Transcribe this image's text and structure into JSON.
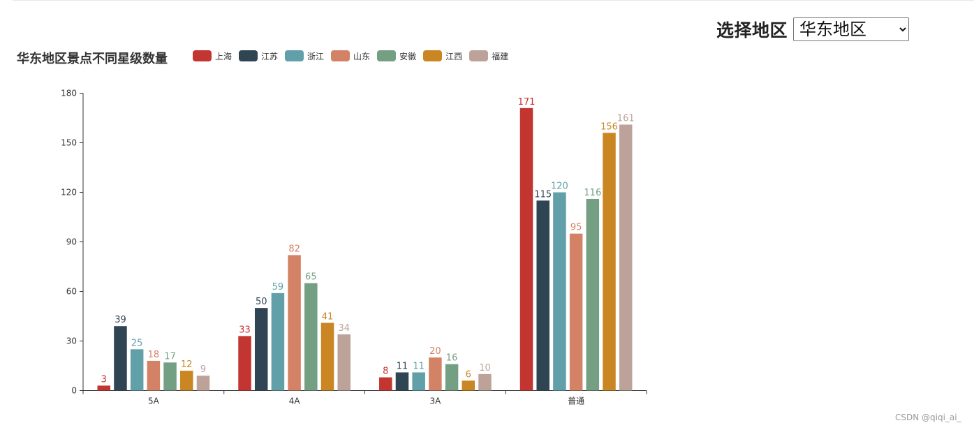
{
  "selector": {
    "label": "选择地区",
    "selected": "华东地区",
    "options": [
      "华东地区"
    ]
  },
  "watermark": "CSDN @qiqi_ai_",
  "chart_data": {
    "type": "bar",
    "title": "华东地区景点不同星级数量",
    "categories": [
      "5A",
      "4A",
      "3A",
      "普通"
    ],
    "yticks": [
      0,
      30,
      60,
      90,
      120,
      150,
      180
    ],
    "ylim": [
      0,
      180
    ],
    "legend_position": "top-left",
    "series": [
      {
        "name": "上海",
        "color": "#c23531",
        "values": [
          3,
          33,
          8,
          171
        ]
      },
      {
        "name": "江苏",
        "color": "#2f4554",
        "values": [
          39,
          50,
          11,
          115
        ]
      },
      {
        "name": "浙江",
        "color": "#61a0a8",
        "values": [
          25,
          59,
          11,
          120
        ]
      },
      {
        "name": "山东",
        "color": "#d48265",
        "values": [
          18,
          82,
          20,
          95
        ]
      },
      {
        "name": "安徽",
        "color": "#749f83",
        "values": [
          17,
          65,
          16,
          116
        ]
      },
      {
        "name": "江西",
        "color": "#ca8622",
        "values": [
          12,
          41,
          6,
          156
        ]
      },
      {
        "name": "福建",
        "color": "#bda29a",
        "values": [
          9,
          34,
          10,
          161
        ]
      }
    ]
  }
}
